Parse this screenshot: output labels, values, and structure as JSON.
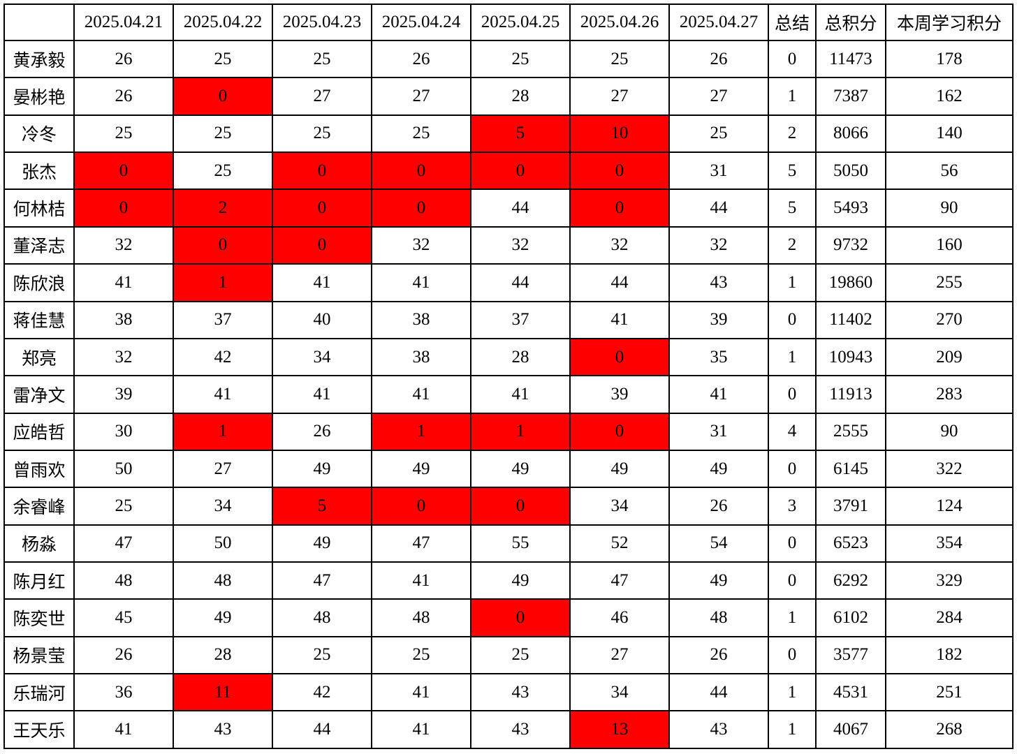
{
  "header": {
    "corner": "",
    "dates": [
      "2025.04.21",
      "2025.04.22",
      "2025.04.23",
      "2025.04.24",
      "2025.04.25",
      "2025.04.26",
      "2025.04.27"
    ],
    "summary_label": "总结",
    "total_label": "总积分",
    "week_label": "本周学习积分"
  },
  "colors": {
    "highlight_bg": "#ff0000",
    "highlight_text": "#ffff00",
    "accent_text": "#ff0000",
    "grid_border": "#000000"
  },
  "rows": [
    {
      "name": "黄承毅",
      "daily": [
        "26",
        "25",
        "25",
        "26",
        "25",
        "25",
        "26"
      ],
      "highlight": [],
      "summary": "0",
      "total": "11473",
      "week": "178"
    },
    {
      "name": "晏彬艳",
      "daily": [
        "26",
        "0",
        "27",
        "27",
        "28",
        "27",
        "27"
      ],
      "highlight": [
        1
      ],
      "summary": "1",
      "total": "7387",
      "week": "162"
    },
    {
      "name": "冷冬",
      "daily": [
        "25",
        "25",
        "25",
        "25",
        "5",
        "10",
        "25"
      ],
      "highlight": [
        4,
        5
      ],
      "summary": "2",
      "total": "8066",
      "week": "140"
    },
    {
      "name": "张杰",
      "daily": [
        "0",
        "25",
        "0",
        "0",
        "0",
        "0",
        "31"
      ],
      "highlight": [
        0,
        2,
        3,
        4,
        5
      ],
      "summary": "5",
      "total": "5050",
      "week": "56"
    },
    {
      "name": "何林桔",
      "daily": [
        "0",
        "2",
        "0",
        "0",
        "44",
        "0",
        "44"
      ],
      "highlight": [
        0,
        1,
        2,
        3,
        5
      ],
      "summary": "5",
      "total": "5493",
      "week": "90"
    },
    {
      "name": "董泽志",
      "daily": [
        "32",
        "0",
        "0",
        "32",
        "32",
        "32",
        "32"
      ],
      "highlight": [
        1,
        2
      ],
      "summary": "2",
      "total": "9732",
      "week": "160"
    },
    {
      "name": "陈欣浪",
      "daily": [
        "41",
        "1",
        "41",
        "41",
        "44",
        "44",
        "43"
      ],
      "highlight": [
        1
      ],
      "summary": "1",
      "total": "19860",
      "week": "255"
    },
    {
      "name": "蒋佳慧",
      "daily": [
        "38",
        "37",
        "40",
        "38",
        "37",
        "41",
        "39"
      ],
      "highlight": [],
      "summary": "0",
      "total": "11402",
      "week": "270"
    },
    {
      "name": "郑亮",
      "daily": [
        "32",
        "42",
        "34",
        "38",
        "28",
        "0",
        "35"
      ],
      "highlight": [
        5
      ],
      "summary": "1",
      "total": "10943",
      "week": "209"
    },
    {
      "name": "雷净文",
      "daily": [
        "39",
        "41",
        "41",
        "41",
        "41",
        "39",
        "41"
      ],
      "highlight": [],
      "summary": "0",
      "total": "11913",
      "week": "283"
    },
    {
      "name": "应皓哲",
      "daily": [
        "30",
        "1",
        "26",
        "1",
        "1",
        "0",
        "31"
      ],
      "highlight": [
        1,
        3,
        4,
        5
      ],
      "summary": "4",
      "total": "2555",
      "week": "90"
    },
    {
      "name": "曾雨欢",
      "daily": [
        "50",
        "27",
        "49",
        "49",
        "49",
        "49",
        "49"
      ],
      "highlight": [],
      "summary": "0",
      "total": "6145",
      "week": "322"
    },
    {
      "name": "余睿峰",
      "daily": [
        "25",
        "34",
        "5",
        "0",
        "0",
        "34",
        "26"
      ],
      "highlight": [
        2,
        3,
        4
      ],
      "summary": "3",
      "total": "3791",
      "week": "124"
    },
    {
      "name": "杨淼",
      "daily": [
        "47",
        "50",
        "49",
        "47",
        "55",
        "52",
        "54"
      ],
      "highlight": [],
      "summary": "0",
      "total": "6523",
      "week": "354"
    },
    {
      "name": "陈月红",
      "daily": [
        "48",
        "48",
        "47",
        "41",
        "49",
        "47",
        "49"
      ],
      "highlight": [],
      "summary": "0",
      "total": "6292",
      "week": "329"
    },
    {
      "name": "陈奕世",
      "daily": [
        "45",
        "49",
        "48",
        "48",
        "0",
        "46",
        "48"
      ],
      "highlight": [
        4
      ],
      "summary": "1",
      "total": "6102",
      "week": "284"
    },
    {
      "name": "杨景莹",
      "daily": [
        "26",
        "28",
        "25",
        "25",
        "25",
        "27",
        "26"
      ],
      "highlight": [],
      "summary": "0",
      "total": "3577",
      "week": "182"
    },
    {
      "name": "乐瑞河",
      "daily": [
        "36",
        "11",
        "42",
        "41",
        "43",
        "34",
        "44"
      ],
      "highlight": [
        1
      ],
      "summary": "1",
      "total": "4531",
      "week": "251"
    },
    {
      "name": "王天乐",
      "daily": [
        "41",
        "43",
        "44",
        "41",
        "43",
        "13",
        "43"
      ],
      "highlight": [
        5
      ],
      "summary": "1",
      "total": "4067",
      "week": "268"
    }
  ]
}
